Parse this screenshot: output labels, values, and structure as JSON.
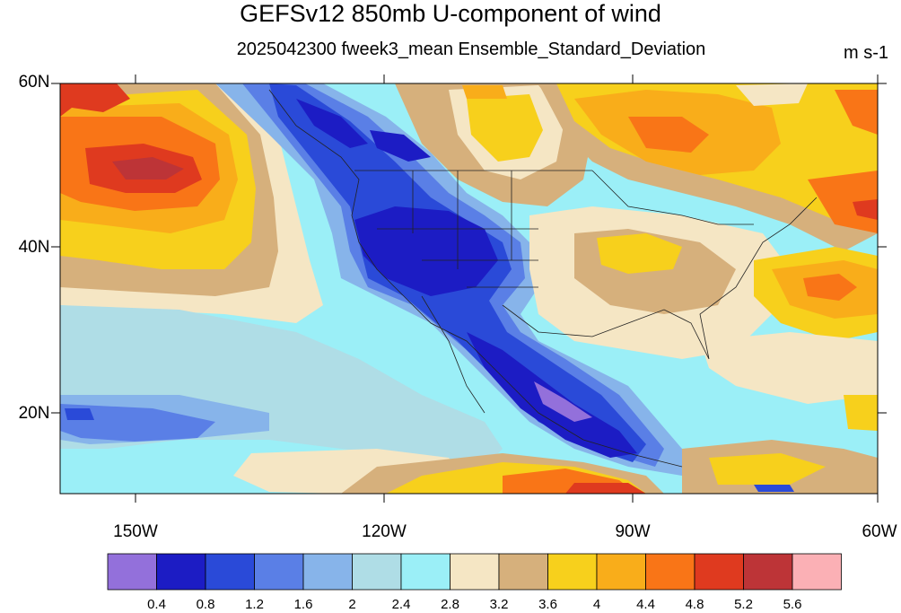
{
  "title": "GEFSv12 850mb U-component of wind",
  "subtitle": "2025042300 fweek3_mean Ensemble_Standard_Deviation",
  "units": "m s-1",
  "axes": {
    "lat_labels": [
      "60N",
      "40N",
      "20N"
    ],
    "lon_labels": [
      "150W",
      "120W",
      "90W",
      "60W"
    ]
  },
  "colorbar": {
    "colors": [
      "#9370db",
      "#1c1cc4",
      "#2a4ad8",
      "#5a7fe6",
      "#87b4ea",
      "#afdde6",
      "#9beff7",
      "#f5e6c4",
      "#d6b07c",
      "#f7d01c",
      "#f9ad1a",
      "#f97517",
      "#df3a1f",
      "#bd3437",
      "#fbb0b5"
    ],
    "labels": [
      "0.4",
      "0.8",
      "1.2",
      "1.6",
      "2",
      "2.4",
      "2.8",
      "3.2",
      "3.6",
      "4",
      "4.4",
      "4.8",
      "5.2",
      "5.6"
    ]
  }
}
